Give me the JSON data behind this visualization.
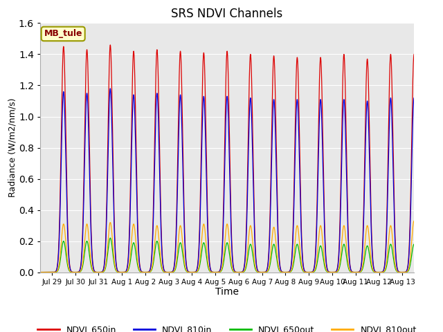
{
  "title": "SRS NDVI Channels",
  "xlabel": "Time",
  "ylabel": "Radiance (W/m2/nm/s)",
  "ylim": [
    0,
    1.6
  ],
  "annotation_text": "MB_tule",
  "legend_labels": [
    "NDVI_650in",
    "NDVI_810in",
    "NDVI_650out",
    "NDVI_810out"
  ],
  "line_colors": [
    "#dd0000",
    "#0000dd",
    "#00bb00",
    "#ffaa00"
  ],
  "plot_bg_color": "#e8e8e8",
  "fig_bg_color": "#ffffff",
  "tick_labels": [
    "Jul 29",
    "Jul 30",
    "Jul 31",
    "Aug 1",
    "Aug 2",
    "Aug 3",
    "Aug 4",
    "Aug 5",
    "Aug 6",
    "Aug 7",
    "Aug 8",
    "Aug 9",
    "Aug 10",
    "Aug 11",
    "Aug 12",
    "Aug 13"
  ],
  "peak_650in": [
    1.45,
    1.43,
    1.46,
    1.42,
    1.43,
    1.42,
    1.41,
    1.42,
    1.4,
    1.39,
    1.38,
    1.38,
    1.4,
    1.37,
    1.4,
    1.4
  ],
  "peak_810in": [
    1.16,
    1.15,
    1.18,
    1.14,
    1.15,
    1.14,
    1.13,
    1.13,
    1.12,
    1.11,
    1.11,
    1.11,
    1.11,
    1.1,
    1.12,
    1.12
  ],
  "peak_650out": [
    0.2,
    0.2,
    0.22,
    0.19,
    0.2,
    0.19,
    0.19,
    0.19,
    0.18,
    0.18,
    0.18,
    0.17,
    0.18,
    0.17,
    0.18,
    0.18
  ],
  "peak_810out": [
    0.31,
    0.31,
    0.32,
    0.31,
    0.3,
    0.3,
    0.31,
    0.31,
    0.3,
    0.29,
    0.3,
    0.3,
    0.3,
    0.3,
    0.3,
    0.33
  ],
  "num_days": 16,
  "points_per_day": 300,
  "sigma": 0.1,
  "xlim": [
    -0.5,
    15.5
  ]
}
